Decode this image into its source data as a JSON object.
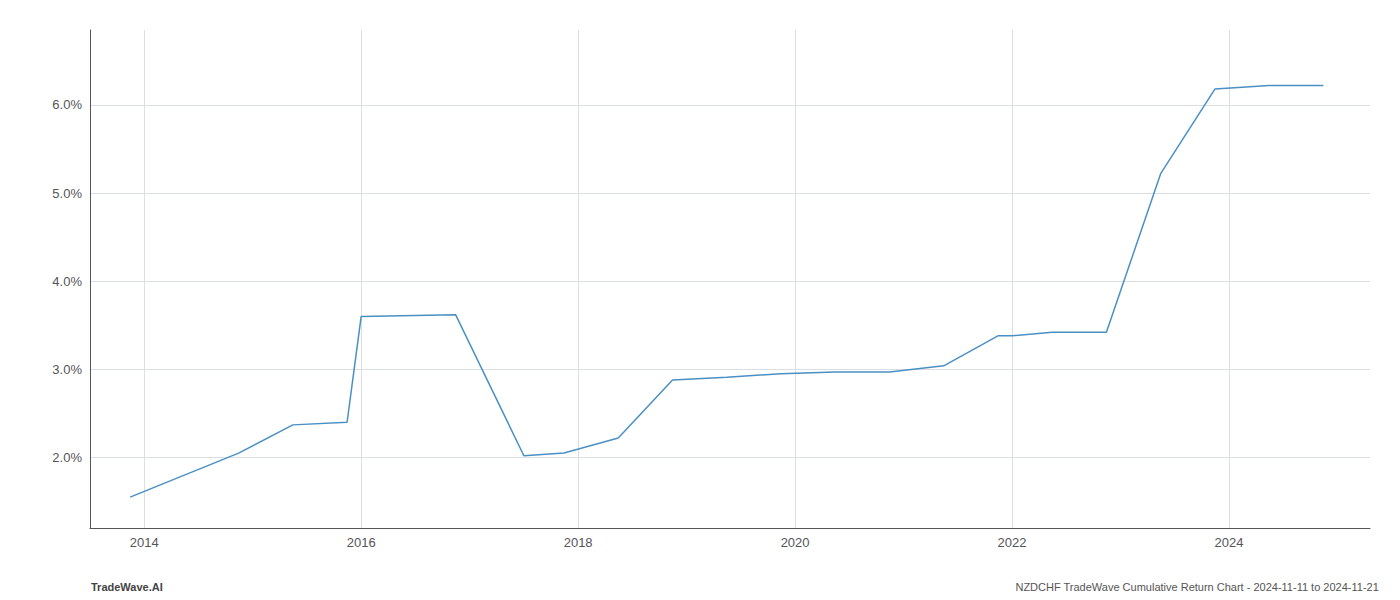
{
  "chart_data": {
    "type": "line",
    "x": [
      2013.87,
      2014.87,
      2015.37,
      2015.87,
      2016.0,
      2016.87,
      2017.5,
      2017.87,
      2018.37,
      2018.87,
      2019.37,
      2019.87,
      2020.37,
      2020.87,
      2021.37,
      2021.87,
      2022.0,
      2022.37,
      2022.87,
      2023.37,
      2023.87,
      2024.37,
      2024.87
    ],
    "values": [
      1.55,
      2.05,
      2.37,
      2.4,
      3.6,
      3.62,
      2.02,
      2.05,
      2.22,
      2.88,
      2.91,
      2.95,
      2.97,
      2.97,
      3.04,
      3.38,
      3.38,
      3.42,
      3.42,
      5.22,
      6.18,
      6.22,
      6.22
    ],
    "color": "#4a90c4",
    "xlim": [
      2013.5,
      2025.3
    ],
    "xticks": [
      2014,
      2016,
      2018,
      2020,
      2022,
      2024
    ],
    "ylim": [
      1.2,
      6.85
    ],
    "yticks": [
      {
        "value": 2.0,
        "label": "2.0%"
      },
      {
        "value": 3.0,
        "label": "3.0%"
      },
      {
        "value": 4.0,
        "label": "4.0%"
      },
      {
        "value": 5.0,
        "label": "5.0%"
      },
      {
        "value": 6.0,
        "label": "6.0%"
      }
    ],
    "grid": true,
    "annotations": [
      "TradeWave.AI",
      "NZDCHF TradeWave Cumulative Return Chart - 2024-11-11 to 2024-11-21"
    ]
  }
}
